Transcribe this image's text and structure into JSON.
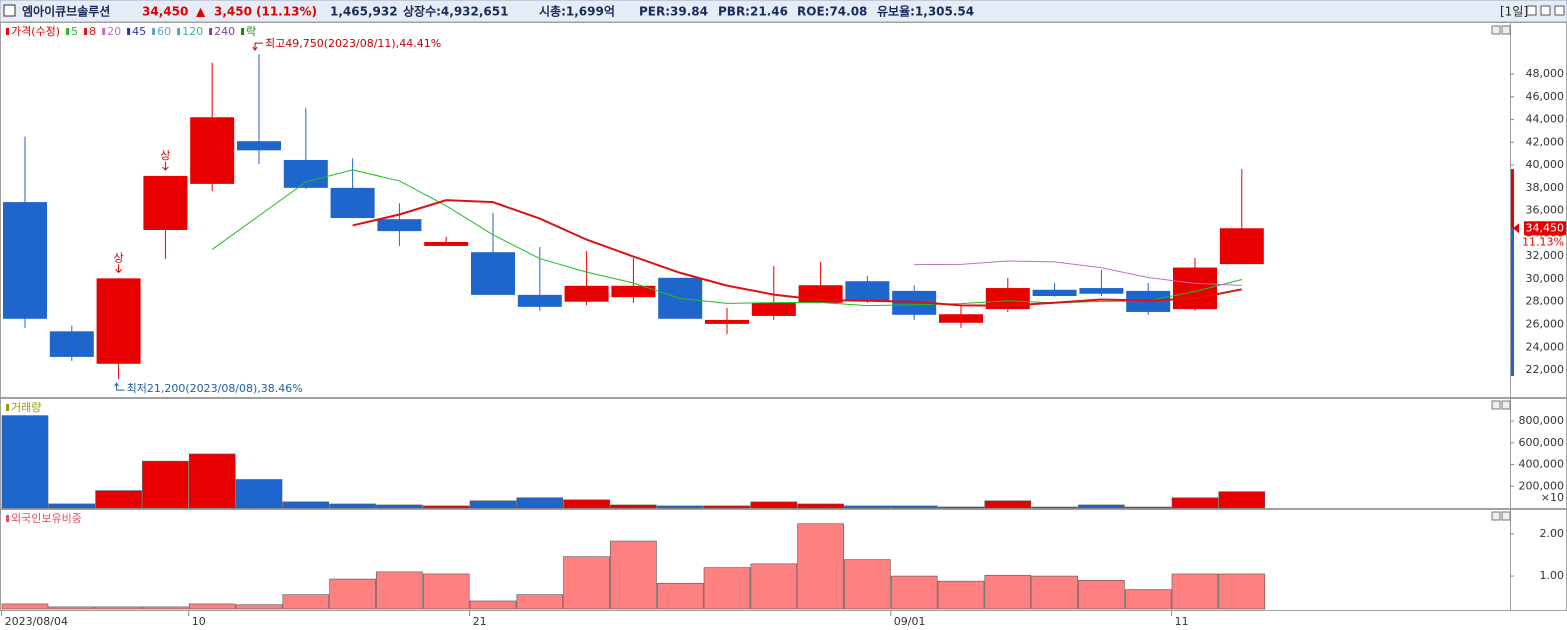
{
  "header": {
    "name": "엠아이큐브솔루션",
    "price": "34,450",
    "arrow": "▲",
    "change": "3,450",
    "change_pct": "(11.13%)",
    "volume": "1,465,932",
    "listed": "상장수:4,932,651",
    "market_cap": "시총:1,699억",
    "per": "PER:39.84",
    "pbr": "PBR:21.46",
    "roe": "ROE:74.08",
    "reserve": "유보율:1,305.54",
    "period": "[1일]"
  },
  "chart_data": [
    {
      "type": "candlestick",
      "price_label": "가격(수정)",
      "price_label_color": "#e00000",
      "extra_legend": "락",
      "extra_legend_color": "#118811",
      "change_label": "11.13%",
      "categories": [
        "2023/08/04",
        null,
        null,
        null,
        "10",
        null,
        null,
        null,
        null,
        null,
        "21",
        null,
        null,
        null,
        null,
        null,
        null,
        null,
        null,
        "09/01",
        null,
        null,
        null,
        null,
        null,
        "11",
        null
      ],
      "open": [
        36750,
        25400,
        22550,
        34300,
        38350,
        42100,
        40450,
        38000,
        35250,
        32900,
        32350,
        28600,
        28000,
        28400,
        30100,
        26050,
        26750,
        27900,
        29800,
        28950,
        26150,
        27350,
        29050,
        29200,
        28950,
        27350,
        31300
      ],
      "high": [
        42500,
        25900,
        30050,
        39050,
        49000,
        49750,
        45000,
        40600,
        36650,
        33700,
        35800,
        32800,
        32450,
        31850,
        30100,
        27450,
        31150,
        31500,
        30250,
        29450,
        27600,
        30100,
        29650,
        30800,
        29650,
        31850,
        39650
      ],
      "low": [
        25700,
        22800,
        21200,
        31750,
        37700,
        40100,
        37900,
        35350,
        32900,
        32900,
        28600,
        27200,
        27700,
        27900,
        26500,
        25150,
        26400,
        27900,
        27900,
        26400,
        25700,
        27100,
        28450,
        28500,
        26850,
        27200,
        31300
      ],
      "close": [
        26500,
        23150,
        30050,
        39050,
        44200,
        41300,
        38000,
        35350,
        34200,
        33250,
        28600,
        27550,
        29400,
        29400,
        26500,
        26400,
        27900,
        29450,
        28050,
        26850,
        26900,
        29200,
        28500,
        28700,
        27100,
        31000,
        34450
      ],
      "up_color": "#e60000",
      "down_color": "#1f66cc",
      "series": [
        {
          "name": "5",
          "color": "#22bb22",
          "values": [
            null,
            null,
            null,
            null,
            32590,
            35550,
            38520,
            39580,
            38610,
            36420,
            33880,
            31790,
            30600,
            29640,
            28290,
            27850,
            27920,
            27930,
            27660,
            27730,
            27830,
            28090,
            27900,
            28030,
            28080,
            28900,
            29950
          ]
        },
        {
          "name": "8",
          "color": "#dd1111",
          "values": [
            null,
            null,
            null,
            null,
            null,
            null,
            null,
            34700,
            35662,
            36925,
            36744,
            35306,
            33456,
            31969,
            30531,
            29413,
            28625,
            28150,
            28081,
            27994,
            27681,
            27656,
            27906,
            28194,
            28094,
            28288,
            29088
          ]
        },
        {
          "name": "20",
          "color": "#c070c0",
          "values": [
            null,
            null,
            null,
            null,
            null,
            null,
            null,
            null,
            null,
            null,
            null,
            null,
            null,
            null,
            null,
            null,
            null,
            null,
            null,
            31258,
            31278,
            31580,
            31503,
            30985,
            30130,
            29615,
            29438
          ]
        },
        {
          "name": "45",
          "color": "#3030c0",
          "values": [
            null,
            null,
            null,
            null,
            null,
            null,
            null,
            null,
            null,
            null,
            null,
            null,
            null,
            null,
            null,
            null,
            null,
            null,
            null,
            null,
            null,
            null,
            null,
            null,
            null,
            null,
            null
          ]
        },
        {
          "name": "60",
          "color": "#60a0d0",
          "values": [
            null,
            null,
            null,
            null,
            null,
            null,
            null,
            null,
            null,
            null,
            null,
            null,
            null,
            null,
            null,
            null,
            null,
            null,
            null,
            null,
            null,
            null,
            null,
            null,
            null,
            null,
            null
          ]
        },
        {
          "name": "120",
          "color": "#40b0b0",
          "values": [
            null,
            null,
            null,
            null,
            null,
            null,
            null,
            null,
            null,
            null,
            null,
            null,
            null,
            null,
            null,
            null,
            null,
            null,
            null,
            null,
            null,
            null,
            null,
            null,
            null,
            null,
            null
          ]
        },
        {
          "name": "240",
          "color": "#8040a0",
          "values": [
            null,
            null,
            null,
            null,
            null,
            null,
            null,
            null,
            null,
            null,
            null,
            null,
            null,
            null,
            null,
            null,
            null,
            null,
            null,
            null,
            null,
            null,
            null,
            null,
            null,
            null,
            null
          ]
        }
      ],
      "annotations": [
        {
          "text": "최고49,750(2023/08/11),44.41%",
          "color": "#cc0000"
        },
        {
          "text": "최저21,200(2023/08/08),38.46%",
          "color": "#1f5fa8"
        }
      ],
      "limit_up_marks": [
        "상",
        "상"
      ],
      "ylim": [
        19630,
        52570
      ],
      "yticks": [
        {
          "value": 22000,
          "label": "22,000"
        },
        {
          "value": 24000,
          "label": "24,000"
        },
        {
          "value": 26000,
          "label": "26,000"
        },
        {
          "value": 28000,
          "label": "28,000"
        },
        {
          "value": 30000,
          "label": "30,000"
        },
        {
          "value": 32000,
          "label": "32,000"
        },
        {
          "value": 34000,
          "label": "34,000"
        },
        {
          "value": 36000,
          "label": "36,000"
        },
        {
          "value": 38000,
          "label": "38,000"
        },
        {
          "value": 40000,
          "label": "40,000"
        },
        {
          "value": 42000,
          "label": "42,000"
        },
        {
          "value": 44000,
          "label": "44,000"
        },
        {
          "value": 46000,
          "label": "46,000"
        },
        {
          "value": 48000,
          "label": "48,000"
        }
      ]
    },
    {
      "type": "bar",
      "title": "거래량",
      "title_color": "#999900",
      "unit_label": "×10",
      "values": [
        850000,
        37500,
        160000,
        431000,
        497000,
        262000,
        56000,
        37000,
        28000,
        19000,
        66000,
        94000,
        75000,
        28000,
        19000,
        19000,
        56000,
        37000,
        19000,
        19000,
        9000,
        66000,
        9000,
        28000,
        9000,
        94000,
        150000
      ],
      "colors": [
        "#1f66cc",
        "#1f66cc",
        "#e60000",
        "#e60000",
        "#e60000",
        "#1f66cc",
        "#1f66cc",
        "#1f66cc",
        "#1f66cc",
        "#e60000",
        "#1f66cc",
        "#1f66cc",
        "#e60000",
        "#e60000",
        "#1f66cc",
        "#e60000",
        "#e60000",
        "#e60000",
        "#1f66cc",
        "#1f66cc",
        "#e60000",
        "#e60000",
        "#1f66cc",
        "#1f66cc",
        "#1f66cc",
        "#e60000",
        "#e60000"
      ],
      "ylim": [
        0,
        1012000
      ],
      "yticks": [
        {
          "value": 200000,
          "label": "200,000"
        },
        {
          "value": 400000,
          "label": "400,000"
        },
        {
          "value": 600000,
          "label": "600,000"
        },
        {
          "value": 800000,
          "label": "800,000"
        }
      ]
    },
    {
      "type": "bar",
      "title": "외국인보유비중",
      "title_color": "#e05060",
      "color": "#ff8080",
      "values": [
        0.34,
        0.27,
        0.27,
        0.27,
        0.34,
        0.32,
        0.56,
        0.93,
        1.1,
        1.05,
        0.41,
        0.56,
        1.46,
        1.83,
        0.83,
        1.2,
        1.29,
        2.24,
        1.39,
        1.0,
        0.88,
        1.02,
        1.0,
        0.9,
        0.68,
        1.05,
        1.05
      ],
      "ylim": [
        0.22,
        2.59
      ],
      "yticks": [
        {
          "value": 1,
          "label": "1.00"
        },
        {
          "value": 2,
          "label": "2.00"
        }
      ]
    }
  ]
}
